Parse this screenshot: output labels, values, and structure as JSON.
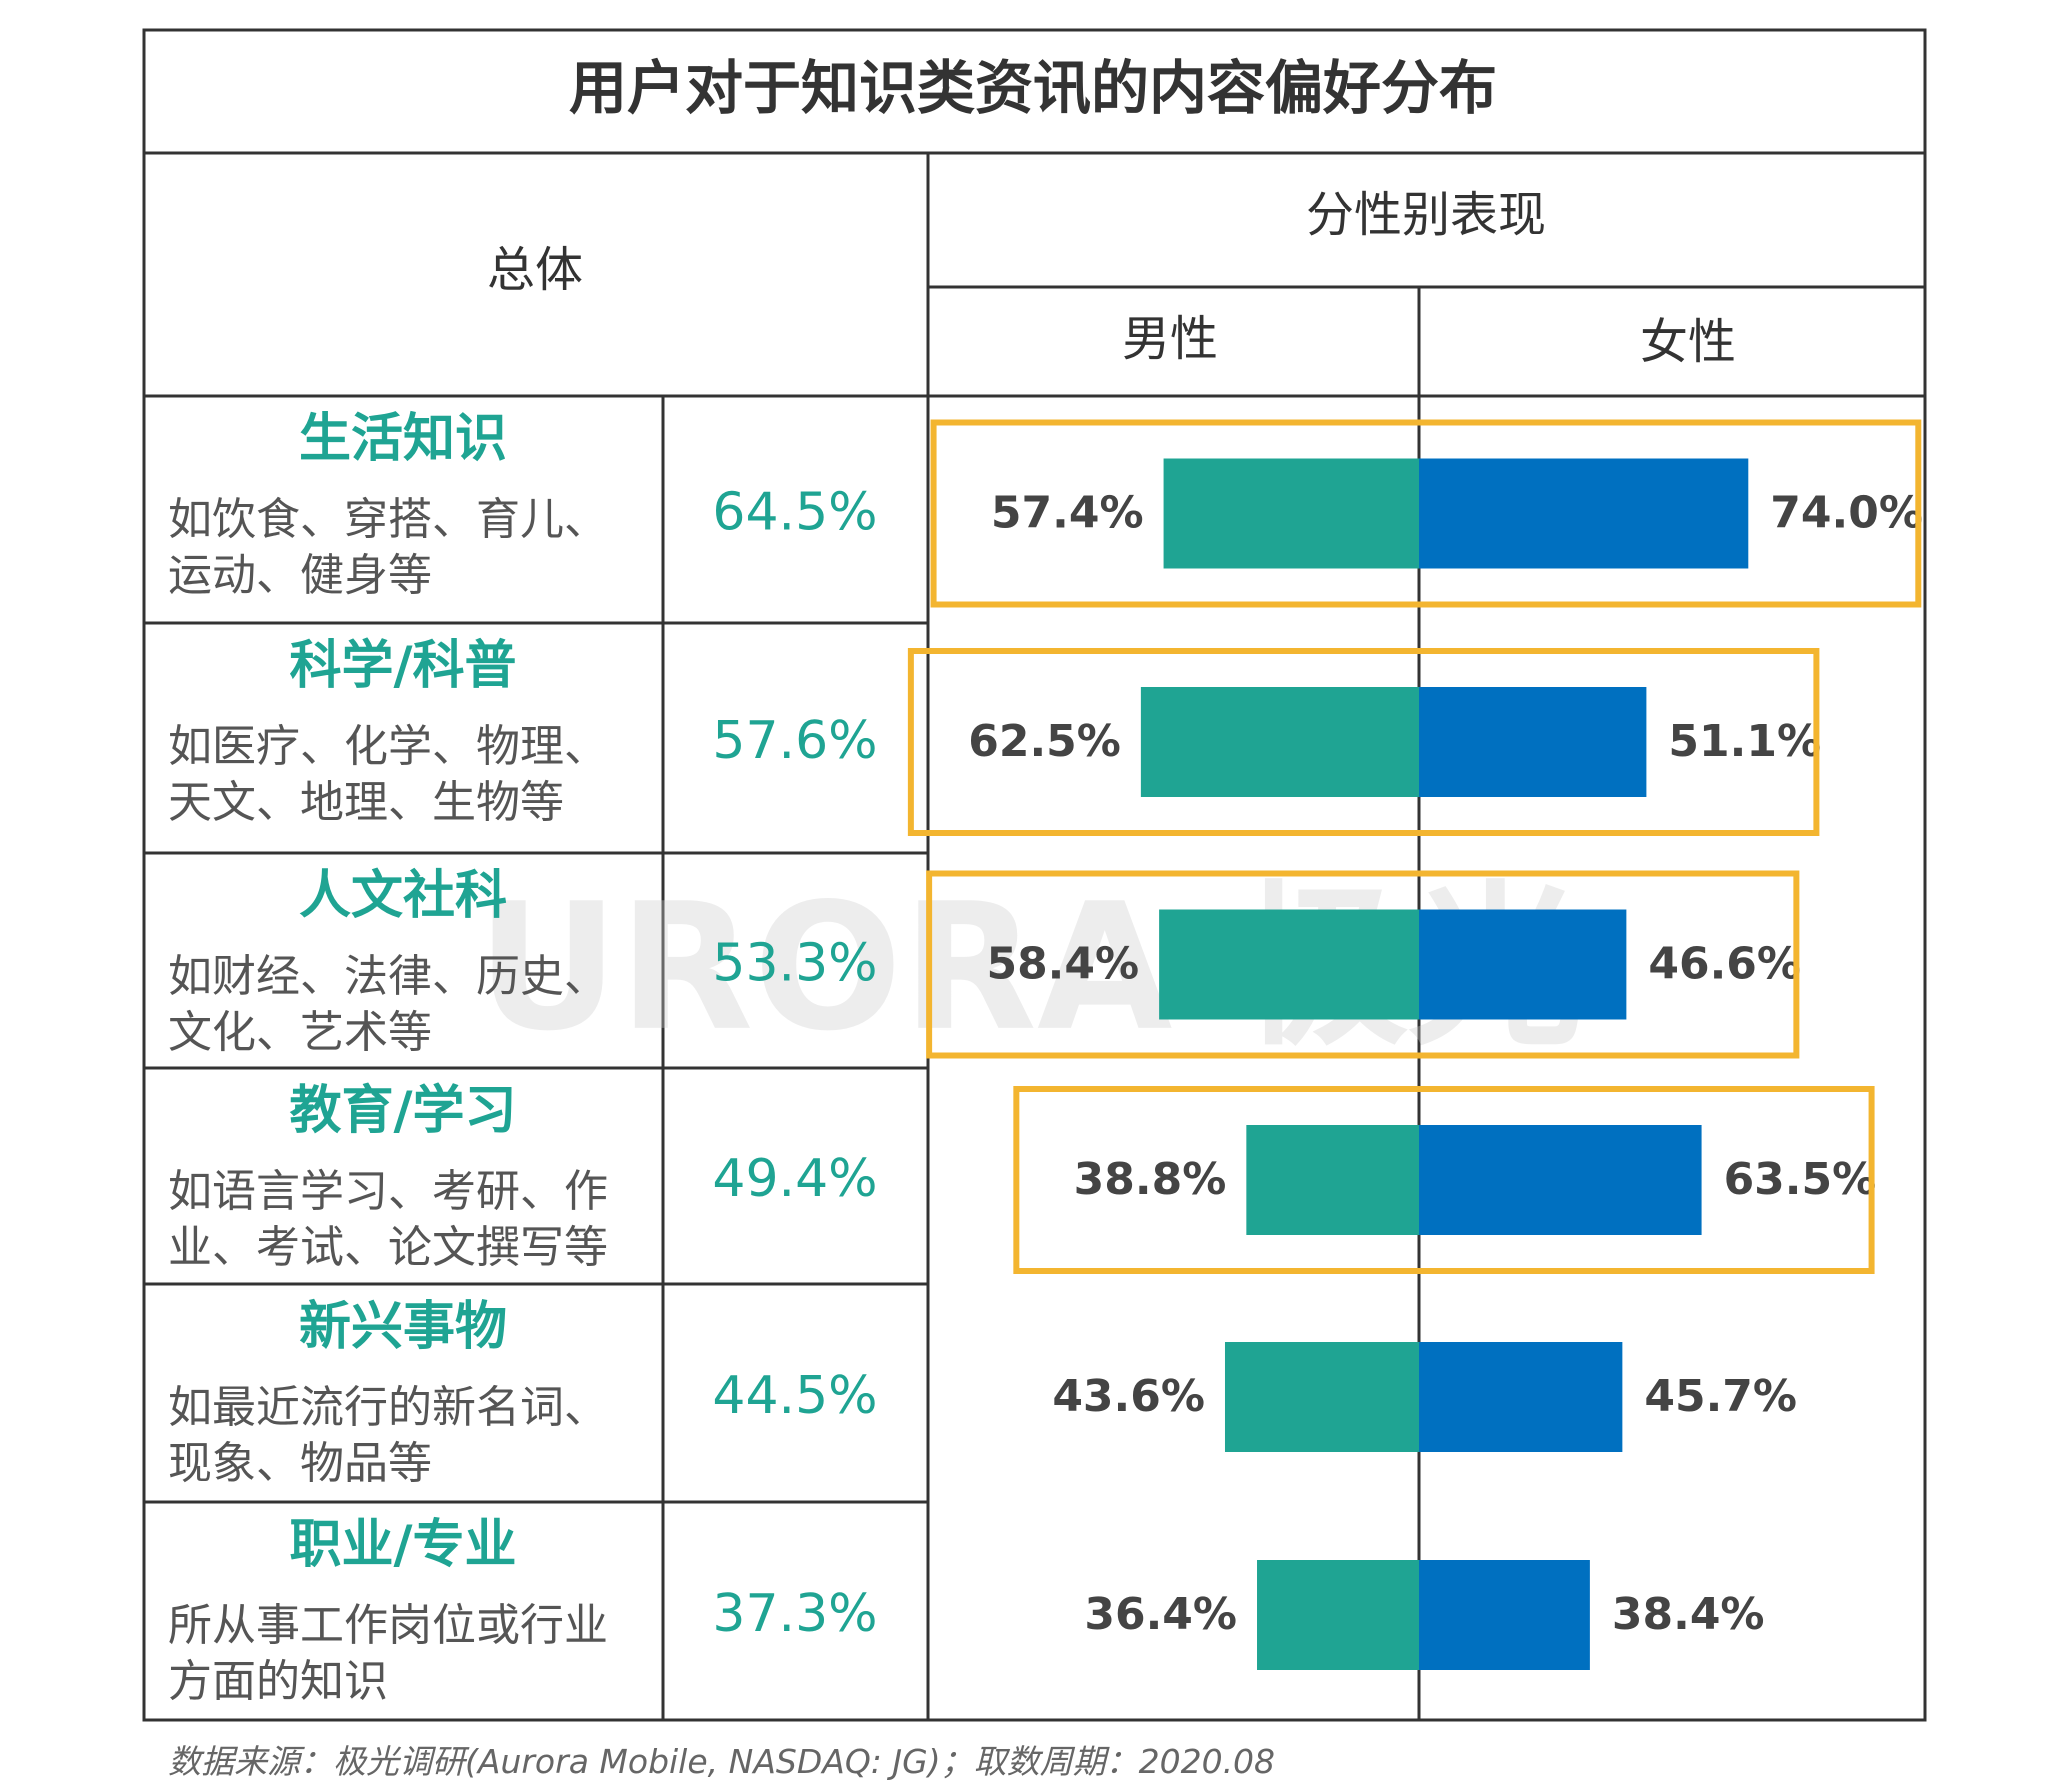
{
  "title": "用户对于知识类资讯的内容偏好分布",
  "headers": {
    "overall": "总体",
    "by_gender": "分性别表现",
    "male": "男性",
    "female": "女性"
  },
  "watermark": "URORA 极光",
  "source": "数据来源：极光调研(Aurora Mobile, NASDAQ: JG)；取数周期：2020.08",
  "colors": {
    "male": "#1fa493",
    "female": "#0070c0",
    "accent_text": "#1fa493",
    "highlight": "#f3b530",
    "value_text": "#444444"
  },
  "chart_data": {
    "type": "bar",
    "title": "用户对于知识类资讯的内容偏好分布",
    "categories": [
      "生活知识",
      "科学/科普",
      "人文社科",
      "教育/学习",
      "新兴事物",
      "职业/专业"
    ],
    "descriptions": [
      [
        "如饮食、穿搭、育儿、",
        "运动、健身等"
      ],
      [
        "如医疗、化学、物理、",
        "天文、地理、生物等"
      ],
      [
        "如财经、法律、历史、",
        "文化、艺术等"
      ],
      [
        "如语言学习、考研、作",
        "业、考试、论文撰写等"
      ],
      [
        "如最近流行的新名词、",
        "现象、物品等"
      ],
      [
        "所从事工作岗位或行业",
        "方面的知识"
      ]
    ],
    "overall": [
      "64.5%",
      "57.6%",
      "53.3%",
      "49.4%",
      "44.5%",
      "37.3%"
    ],
    "series": [
      {
        "name": "男性",
        "values": [
          57.4,
          62.5,
          58.4,
          38.8,
          43.6,
          36.4
        ],
        "labels": [
          "57.4%",
          "62.5%",
          "58.4%",
          "38.8%",
          "43.6%",
          "36.4%"
        ]
      },
      {
        "name": "女性",
        "values": [
          74.0,
          51.1,
          46.6,
          63.5,
          45.7,
          38.4
        ],
        "labels": [
          "74.0%",
          "51.1%",
          "46.6%",
          "63.5%",
          "45.7%",
          "38.4%"
        ]
      }
    ],
    "highlighted_rows": [
      0,
      1,
      2,
      3
    ]
  }
}
